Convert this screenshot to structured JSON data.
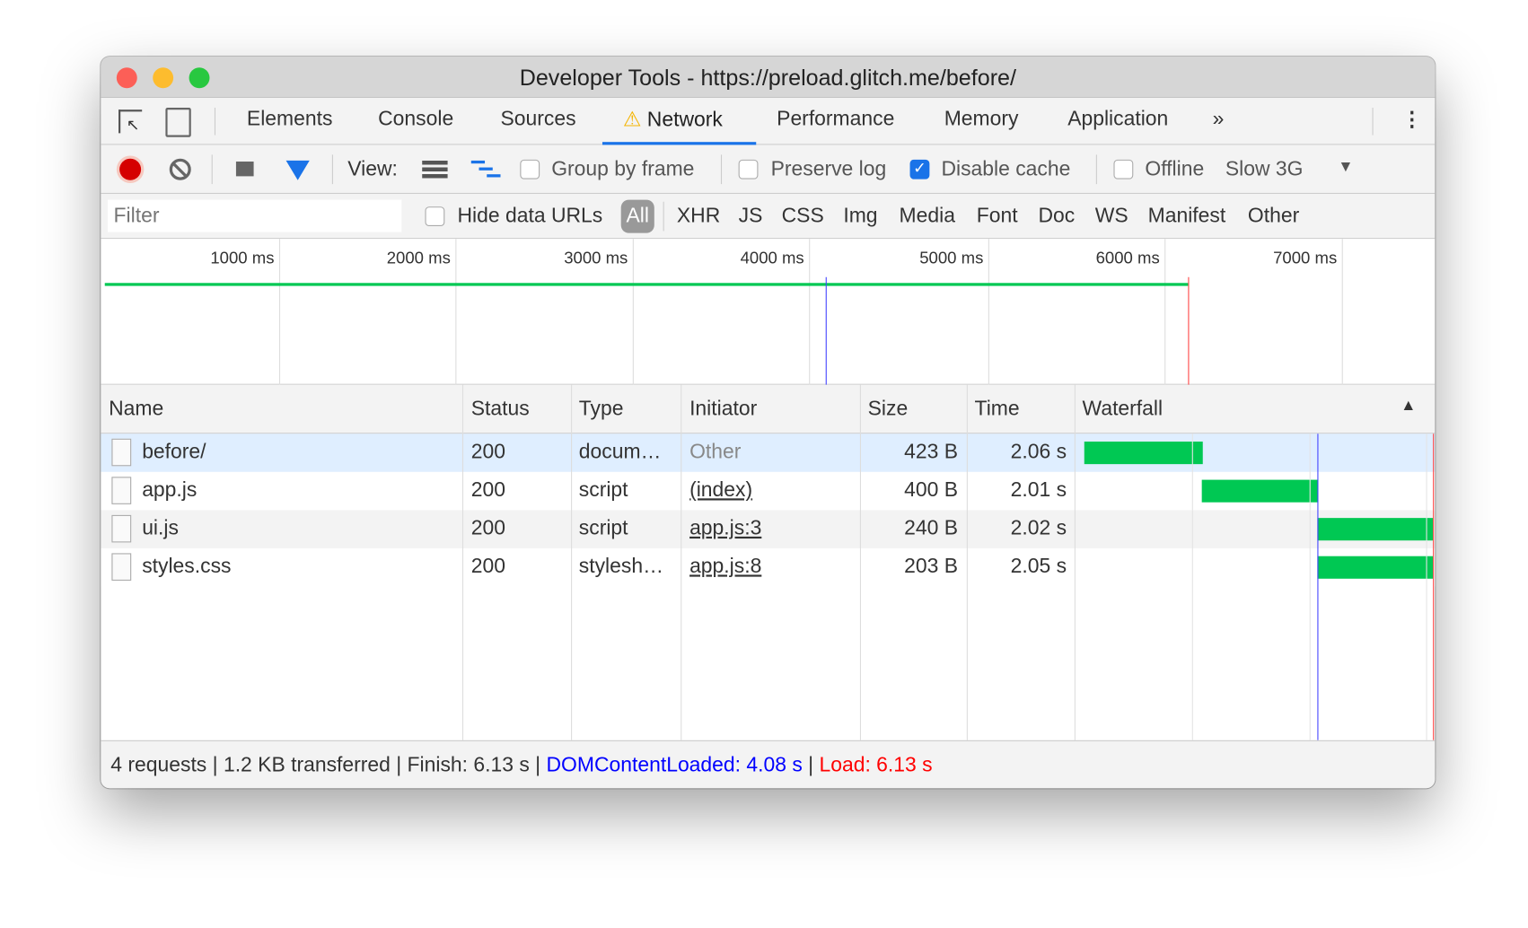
{
  "window": {
    "title": "Developer Tools - https://preload.glitch.me/before/"
  },
  "tabs": [
    {
      "label": "Elements"
    },
    {
      "label": "Console"
    },
    {
      "label": "Sources"
    },
    {
      "label": "Network",
      "active": true,
      "warning": true
    },
    {
      "label": "Performance"
    },
    {
      "label": "Memory"
    },
    {
      "label": "Application"
    }
  ],
  "toolbar": {
    "view_label": "View:",
    "group_by_frame": "Group by frame",
    "preserve_log": "Preserve log",
    "disable_cache": "Disable cache",
    "disable_cache_checked": true,
    "offline": "Offline",
    "throttle": "Slow 3G"
  },
  "filter": {
    "placeholder": "Filter",
    "hide_data_urls": "Hide data URLs",
    "types": [
      "All",
      "XHR",
      "JS",
      "CSS",
      "Img",
      "Media",
      "Font",
      "Doc",
      "WS",
      "Manifest",
      "Other"
    ]
  },
  "overview": {
    "ticks": [
      "1000 ms",
      "2000 ms",
      "3000 ms",
      "4000 ms",
      "5000 ms",
      "6000 ms",
      "7000 ms"
    ]
  },
  "table": {
    "headers": [
      "Name",
      "Status",
      "Type",
      "Initiator",
      "Size",
      "Time",
      "Waterfall"
    ],
    "rows": [
      {
        "name": "before/",
        "status": "200",
        "type": "docum…",
        "initiator": "Other",
        "size": "423 B",
        "time": "2.06 s"
      },
      {
        "name": "app.js",
        "status": "200",
        "type": "script",
        "initiator": "(index)",
        "size": "400 B",
        "time": "2.01 s"
      },
      {
        "name": "ui.js",
        "status": "200",
        "type": "script",
        "initiator": "app.js:3",
        "size": "240 B",
        "time": "2.02 s"
      },
      {
        "name": "styles.css",
        "status": "200",
        "type": "stylesh…",
        "initiator": "app.js:8",
        "size": "203 B",
        "time": "2.05 s"
      }
    ]
  },
  "footer": {
    "summary": "4 requests | 1.2 KB transferred | Finish: 6.13 s | ",
    "dcl": "DOMContentLoaded: 4.08 s",
    "sep": " | ",
    "load": "Load: 6.13 s"
  },
  "colors": {
    "accent": "#1a73e8",
    "bar": "#00c853",
    "dcl": "#0000ff",
    "load": "#ff0000"
  }
}
